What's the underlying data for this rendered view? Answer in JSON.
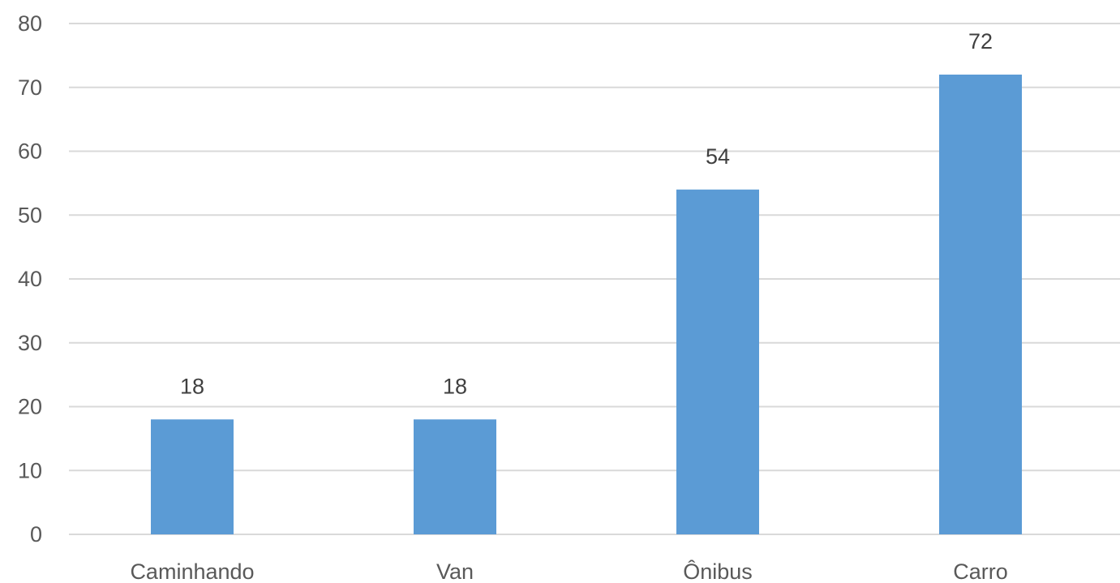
{
  "chart_data": {
    "type": "bar",
    "categories": [
      "Caminhando",
      "Van",
      "Ônibus",
      "Carro"
    ],
    "series": [
      {
        "values": [
          18,
          18,
          54,
          72
        ]
      }
    ],
    "data_labels": [
      "18",
      "18",
      "54",
      "72"
    ],
    "title": "",
    "xlabel": "",
    "ylabel": "",
    "ylim": [
      0,
      80
    ],
    "yticks": [
      "0",
      "10",
      "20",
      "30",
      "40",
      "50",
      "60",
      "70",
      "80"
    ],
    "grid": true,
    "legend": "none",
    "bar_color": "#5b9bd5",
    "grid_color": "#d9d9d9"
  }
}
